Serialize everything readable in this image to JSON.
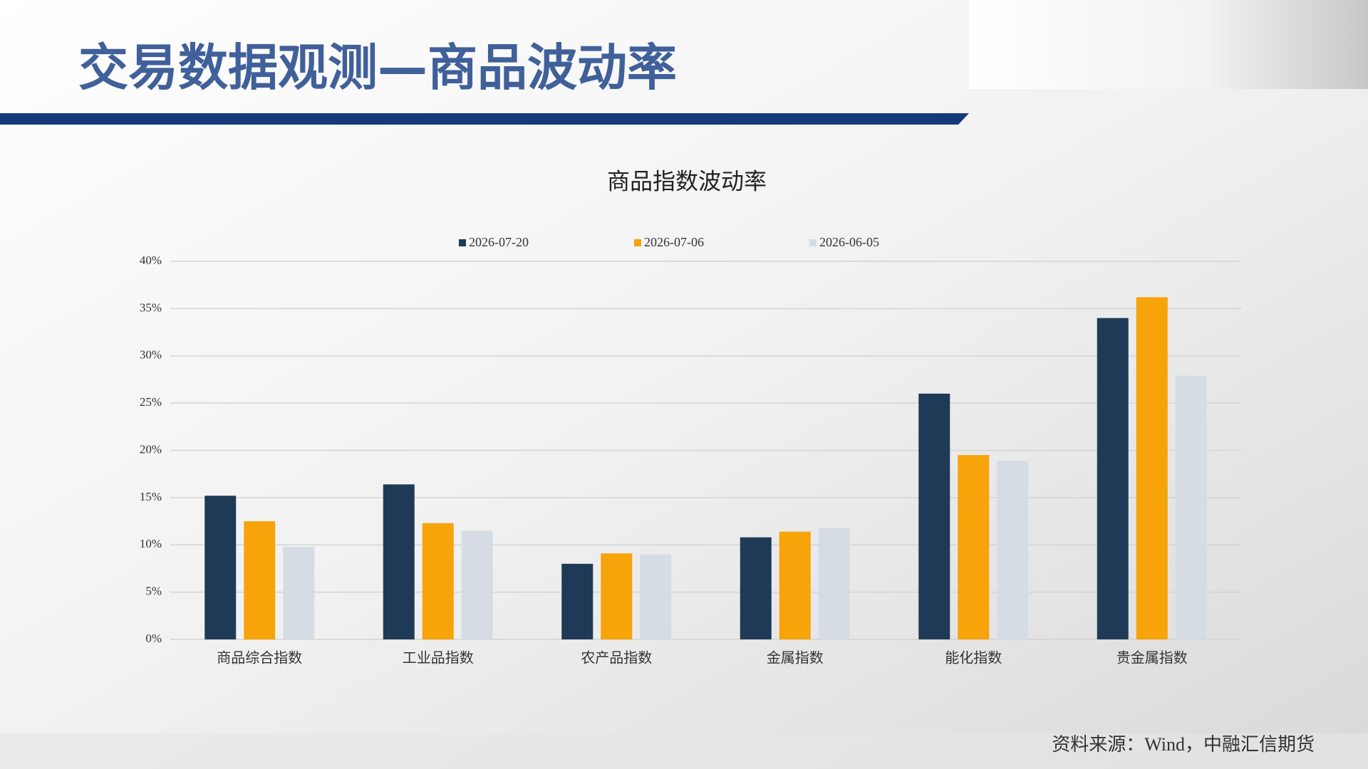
{
  "title": "交易数据观测—商品波动率",
  "source": "资料来源：Wind，中融汇信期货",
  "chart_data": {
    "type": "bar",
    "title": "商品指数波动率",
    "categories": [
      "商品综合指数",
      "工业品指数",
      "农产品指数",
      "金属指数",
      "能化指数",
      "贵金属指数"
    ],
    "series": [
      {
        "name": "2026-07-20",
        "color": "#1f3a56",
        "values": [
          15.2,
          16.4,
          8.0,
          10.8,
          26.0,
          34.0
        ]
      },
      {
        "name": "2026-07-06",
        "color": "#f7a30a",
        "values": [
          12.5,
          12.3,
          9.1,
          11.4,
          19.5,
          36.2
        ]
      },
      {
        "name": "2026-06-05",
        "color": "#d5dce4",
        "values": [
          9.8,
          11.5,
          9.0,
          11.8,
          18.9,
          27.9
        ]
      }
    ],
    "ylim": [
      0,
      40
    ],
    "yticks": [
      {
        "value": 0,
        "label": "0%"
      },
      {
        "value": 5,
        "label": "5%"
      },
      {
        "value": 10,
        "label": "10%"
      },
      {
        "value": 15,
        "label": "15%"
      },
      {
        "value": 20,
        "label": "20%"
      },
      {
        "value": 25,
        "label": "25%"
      },
      {
        "value": 30,
        "label": "30%"
      },
      {
        "value": 35,
        "label": "35%"
      },
      {
        "value": 40,
        "label": "40%"
      }
    ],
    "grid": true,
    "legend": "top"
  }
}
